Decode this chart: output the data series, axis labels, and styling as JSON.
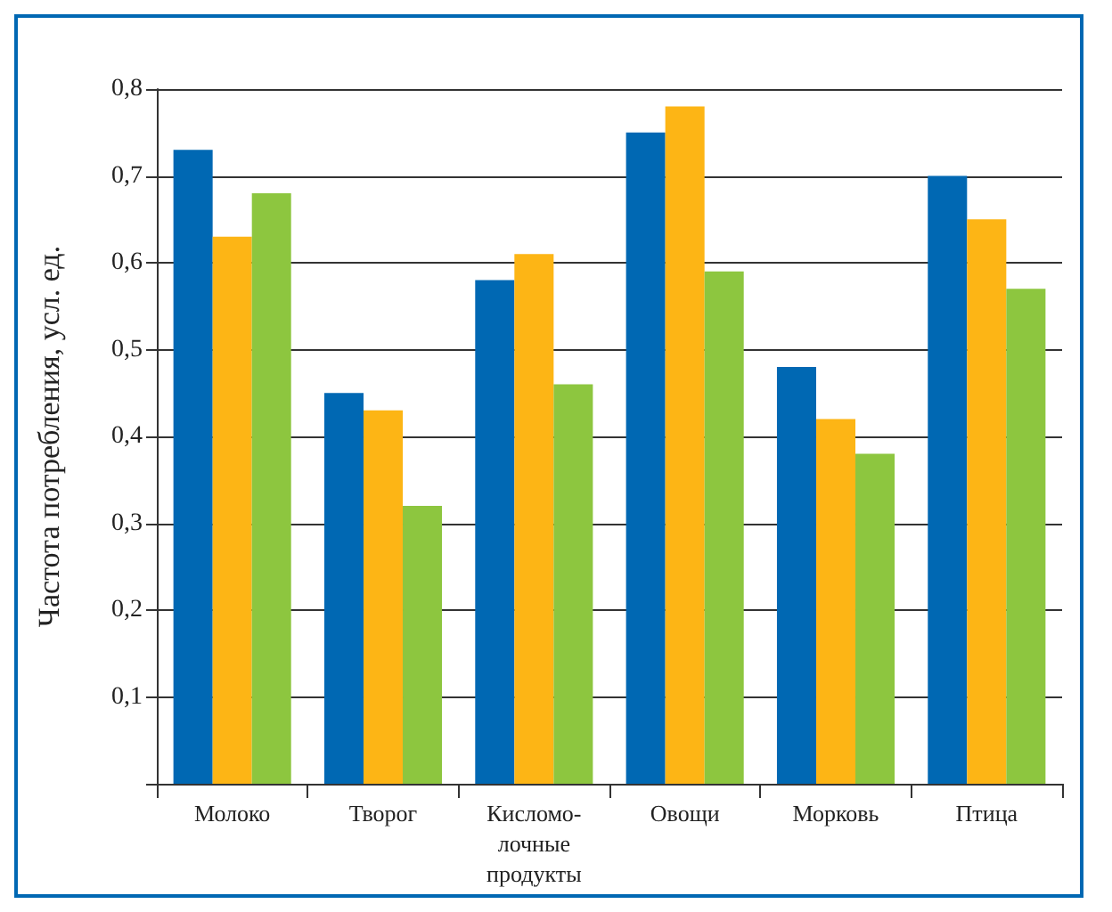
{
  "chart_data": {
    "type": "bar",
    "ylabel": "Частота потребления, усл. ед.",
    "categories": [
      "Молоко",
      "Творог",
      "Кисломо-\nлочные\nпродукты",
      "Овощи",
      "Морковь",
      "Птица"
    ],
    "series": [
      {
        "color": "#0068b3",
        "values": [
          0.73,
          0.45,
          0.58,
          0.75,
          0.48,
          0.7
        ]
      },
      {
        "color": "#fdb515",
        "values": [
          0.63,
          0.43,
          0.61,
          0.78,
          0.42,
          0.65
        ]
      },
      {
        "color": "#8dc63f",
        "values": [
          0.68,
          0.32,
          0.46,
          0.59,
          0.38,
          0.57
        ]
      }
    ],
    "ylim": [
      0,
      0.8
    ],
    "yticks": [
      {
        "value": 0,
        "label": null
      },
      {
        "value": 0.1,
        "label": "0,1"
      },
      {
        "value": 0.2,
        "label": "0,2"
      },
      {
        "value": 0.3,
        "label": "0,3"
      },
      {
        "value": 0.4,
        "label": "0,4"
      },
      {
        "value": 0.5,
        "label": "0,5"
      },
      {
        "value": 0.6,
        "label": "0,6"
      },
      {
        "value": 0.7,
        "label": "0,7"
      },
      {
        "value": 0.8,
        "label": "0,8"
      }
    ],
    "grid": "y"
  }
}
